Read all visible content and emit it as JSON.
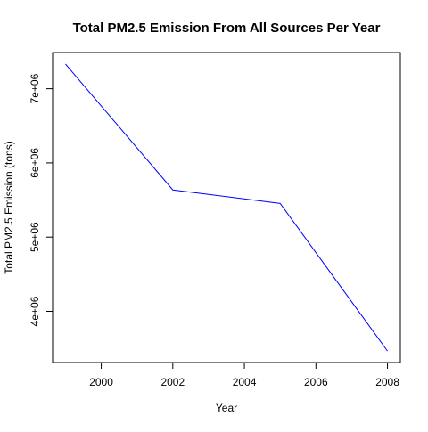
{
  "chart_data": {
    "type": "line",
    "title": "Total PM2.5 Emission From All Sources Per Year",
    "xlabel": "Year",
    "ylabel": "Total PM2.5 Emission (tons)",
    "x": [
      1999,
      2002,
      2005,
      2008
    ],
    "series": [
      {
        "values": [
          7332967,
          5635780,
          5454703,
          3464206
        ],
        "color": "#0000ff"
      }
    ],
    "x_ticks": [
      2000,
      2002,
      2004,
      2006,
      2008
    ],
    "x_tick_labels": [
      "2000",
      "2002",
      "2004",
      "2006",
      "2008"
    ],
    "y_ticks": [
      4000000,
      5000000,
      6000000,
      7000000
    ],
    "y_tick_labels": [
      "4e+06",
      "5e+06",
      "6e+06",
      "7e+06"
    ],
    "xlim": [
      1998.64,
      2008.36
    ],
    "ylim": [
      3309496,
      7487677
    ],
    "grid": false,
    "legend": "none"
  }
}
